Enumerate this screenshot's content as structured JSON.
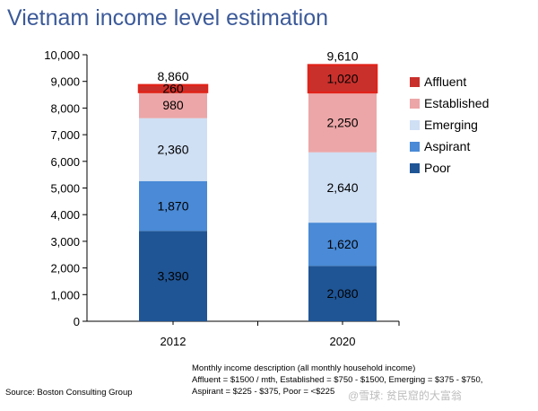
{
  "title": "Vietnam income level estimation",
  "chart_data": {
    "type": "bar",
    "stacked": true,
    "categories": [
      "2012",
      "2020"
    ],
    "series": [
      {
        "name": "Poor",
        "color": "#1f5595",
        "values": [
          3390,
          2080
        ]
      },
      {
        "name": "Aspirant",
        "color": "#4a8ad6",
        "values": [
          1870,
          1620
        ]
      },
      {
        "name": "Emerging",
        "color": "#cfdff4",
        "values": [
          2360,
          2640
        ]
      },
      {
        "name": "Established",
        "color": "#eca6a7",
        "values": [
          980,
          2250
        ]
      },
      {
        "name": "Affluent",
        "color": "#c9302c",
        "values": [
          260,
          1020
        ]
      }
    ],
    "totals": [
      8860,
      9610
    ],
    "ylim": [
      0,
      10000
    ],
    "yticks": [
      0,
      1000,
      2000,
      3000,
      4000,
      5000,
      6000,
      7000,
      8000,
      9000,
      10000
    ],
    "legend_position": "right",
    "grid": false,
    "highlight_color": "#e0241b"
  },
  "footer": {
    "source": "Source: Boston Consulting Group",
    "note_lines": [
      "Monthly income description (all monthly household income)",
      "Affluent = $1500 / mth, Established = $750 - $1500, Emerging = $375 - $750,",
      "Aspirant = $225 - $375, Poor = <$225"
    ],
    "watermark": "@雪球: 贫民窟的大富翁"
  }
}
